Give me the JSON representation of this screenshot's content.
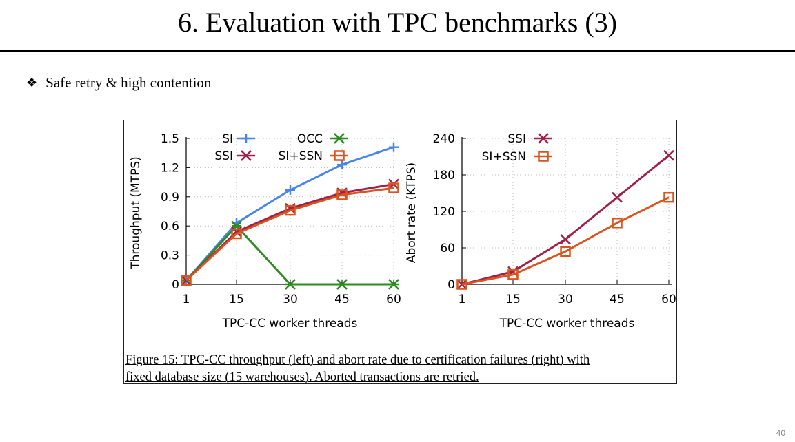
{
  "slide": {
    "title": "6. Evaluation with TPC benchmarks (3)",
    "bullet_icon": "diamond-bullet-icon",
    "bullet_text": "Safe retry & high contention",
    "page_number": "40",
    "caption_line1": "Figure 15: TPC-CC throughput (left) and abort rate due to certification failures (right) with",
    "caption_line2": "fixed database size (15 warehouses). Aborted transactions are retried."
  },
  "chart_data": [
    {
      "type": "line",
      "title": "",
      "xlabel": "TPC-CC worker threads",
      "ylabel": "Throughput (MTPS)",
      "categories": [
        "1",
        "15",
        "30",
        "45",
        "60"
      ],
      "yticks": [
        "0",
        "0.3",
        "0.6",
        "0.9",
        "1.2",
        "1.5"
      ],
      "ylim": [
        0,
        1.5
      ],
      "grid": true,
      "legend_position": "top",
      "series": [
        {
          "name": "SI",
          "color": "#4a86e8",
          "marker": "plus",
          "values": [
            0.04,
            0.63,
            0.97,
            1.23,
            1.41
          ]
        },
        {
          "name": "OCC",
          "color": "#2e8b20",
          "marker": "asterisk",
          "values": [
            0.04,
            0.6,
            0.0,
            0.0,
            0.0
          ]
        },
        {
          "name": "SSI",
          "color": "#a0204a",
          "marker": "x",
          "values": [
            0.04,
            0.54,
            0.78,
            0.94,
            1.03
          ]
        },
        {
          "name": "SI+SSN",
          "color": "#d9541e",
          "marker": "square",
          "values": [
            0.04,
            0.52,
            0.76,
            0.92,
            0.99
          ]
        }
      ]
    },
    {
      "type": "line",
      "title": "",
      "xlabel": "TPC-CC worker threads",
      "ylabel": "Abort rate (KTPS)",
      "categories": [
        "1",
        "15",
        "30",
        "45",
        "60"
      ],
      "yticks": [
        "0",
        "60",
        "120",
        "180",
        "240"
      ],
      "ylim": [
        0,
        240
      ],
      "grid": true,
      "legend_position": "top-left",
      "series": [
        {
          "name": "SSI",
          "color": "#a0204a",
          "marker": "x",
          "values": [
            0,
            21,
            74,
            143,
            212
          ]
        },
        {
          "name": "SI+SSN",
          "color": "#d9541e",
          "marker": "square",
          "values": [
            0,
            16,
            54,
            101,
            143
          ]
        }
      ]
    }
  ]
}
